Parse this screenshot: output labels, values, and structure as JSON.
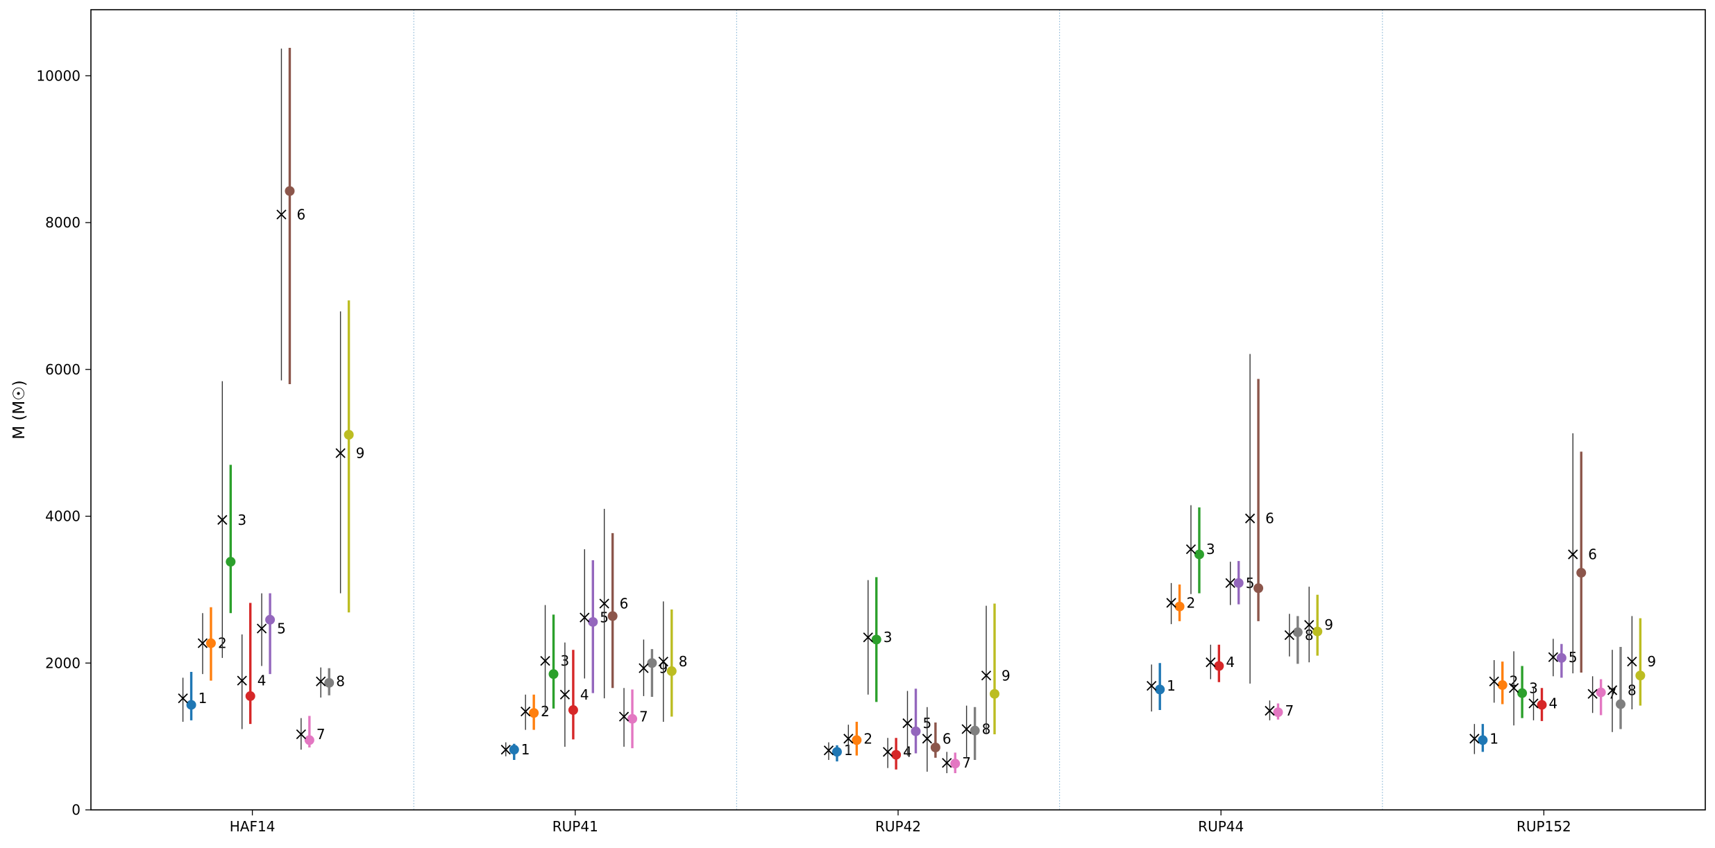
{
  "chart_data": {
    "type": "scatter",
    "title": "",
    "xlabel": "",
    "ylabel": "M (M☉)",
    "ylim": [
      0,
      10900
    ],
    "yticks": [
      0,
      2000,
      4000,
      6000,
      8000,
      10000
    ],
    "grid": false,
    "legend": "none",
    "categories": [
      "HAF14",
      "RUP41",
      "RUP42",
      "RUP44",
      "RUP152"
    ],
    "member_labels": [
      "1",
      "2",
      "3",
      "4",
      "5",
      "6",
      "7",
      "8",
      "9"
    ],
    "member_colors": [
      "#1f77b4",
      "#ff7f0e",
      "#2ca02c",
      "#d62728",
      "#9467bd",
      "#8c564b",
      "#e377c2",
      "#7f7f7f",
      "#bcbd22"
    ],
    "cross_color": "#000000",
    "separator_color": "#a6c8e0",
    "clusters": [
      {
        "name": "HAF14",
        "cross": [
          [
            1520,
            1200,
            1800
          ],
          [
            2270,
            1850,
            2680
          ],
          [
            3950,
            2070,
            5840
          ],
          [
            1760,
            1100,
            2390
          ],
          [
            2470,
            1960,
            2950
          ],
          [
            8110,
            5850,
            10370
          ],
          [
            1030,
            820,
            1250
          ],
          [
            1750,
            1530,
            1940
          ],
          [
            4860,
            2950,
            6790
          ]
        ],
        "point": [
          [
            1430,
            1220,
            1880
          ],
          [
            2270,
            1760,
            2760
          ],
          [
            3380,
            2680,
            4700
          ],
          [
            1550,
            1170,
            2820
          ],
          [
            2590,
            1850,
            2950
          ],
          [
            8430,
            5800,
            10380
          ],
          [
            950,
            850,
            1280
          ],
          [
            1730,
            1560,
            1930
          ],
          [
            5110,
            2690,
            6940
          ]
        ]
      },
      {
        "name": "RUP41",
        "cross": [
          [
            820,
            730,
            920
          ],
          [
            1340,
            1090,
            1570
          ],
          [
            2030,
            1320,
            2790
          ],
          [
            1570,
            860,
            2280
          ],
          [
            2620,
            1790,
            3550
          ],
          [
            2810,
            1520,
            4100
          ],
          [
            1270,
            860,
            1660
          ],
          [
            1930,
            1550,
            2320
          ],
          [
            2020,
            1200,
            2840
          ]
        ],
        "point": [
          [
            820,
            680,
            900
          ],
          [
            1320,
            1090,
            1570
          ],
          [
            1850,
            1380,
            2660
          ],
          [
            1360,
            960,
            2180
          ],
          [
            2560,
            1590,
            3400
          ],
          [
            2640,
            1660,
            3770
          ],
          [
            1240,
            840,
            1640
          ],
          [
            2000,
            1540,
            2190
          ],
          [
            1890,
            1270,
            2730
          ]
        ],
        "label_order": [
          0,
          1,
          2,
          3,
          4,
          5,
          6,
          8,
          7
        ]
      },
      {
        "name": "RUP42",
        "cross": [
          [
            810,
            680,
            920
          ],
          [
            970,
            760,
            1160
          ],
          [
            2350,
            1570,
            3130
          ],
          [
            790,
            570,
            980
          ],
          [
            1180,
            740,
            1620
          ],
          [
            970,
            520,
            1400
          ],
          [
            640,
            500,
            790
          ],
          [
            1100,
            700,
            1420
          ],
          [
            1830,
            1030,
            2780
          ]
        ],
        "point": [
          [
            790,
            660,
            880
          ],
          [
            950,
            740,
            1200
          ],
          [
            2320,
            1470,
            3170
          ],
          [
            750,
            550,
            980
          ],
          [
            1070,
            770,
            1650
          ],
          [
            850,
            710,
            1190
          ],
          [
            630,
            500,
            780
          ],
          [
            1080,
            680,
            1400
          ],
          [
            1580,
            1030,
            2810
          ]
        ]
      },
      {
        "name": "RUP44",
        "cross": [
          [
            1690,
            1340,
            1980
          ],
          [
            2820,
            2530,
            3090
          ],
          [
            3550,
            2940,
            4150
          ],
          [
            2010,
            1780,
            2250
          ],
          [
            3090,
            2790,
            3380
          ],
          [
            3970,
            1720,
            6210
          ],
          [
            1350,
            1220,
            1490
          ],
          [
            2380,
            2090,
            2670
          ],
          [
            2520,
            2010,
            3040
          ]
        ],
        "point": [
          [
            1640,
            1360,
            2000
          ],
          [
            2770,
            2570,
            3070
          ],
          [
            3480,
            2950,
            4120
          ],
          [
            1960,
            1740,
            2250
          ],
          [
            3090,
            2800,
            3390
          ],
          [
            3020,
            2570,
            5870
          ],
          [
            1330,
            1230,
            1450
          ],
          [
            2420,
            1990,
            2640
          ],
          [
            2430,
            2100,
            2930
          ]
        ]
      },
      {
        "name": "RUP152",
        "cross": [
          [
            970,
            760,
            1170
          ],
          [
            1750,
            1460,
            2040
          ],
          [
            1660,
            1150,
            2160
          ],
          [
            1450,
            1220,
            1660
          ],
          [
            2080,
            1820,
            2330
          ],
          [
            3480,
            1860,
            5130
          ],
          [
            1580,
            1320,
            1820
          ],
          [
            1630,
            1060,
            2180
          ],
          [
            2020,
            1370,
            2640
          ]
        ],
        "point": [
          [
            950,
            790,
            1170
          ],
          [
            1700,
            1440,
            2020
          ],
          [
            1590,
            1250,
            1960
          ],
          [
            1430,
            1210,
            1660
          ],
          [
            2070,
            1800,
            2260
          ],
          [
            3230,
            1870,
            4880
          ],
          [
            1600,
            1290,
            1780
          ],
          [
            1440,
            1100,
            2220
          ],
          [
            1830,
            1420,
            2610
          ]
        ]
      }
    ]
  }
}
